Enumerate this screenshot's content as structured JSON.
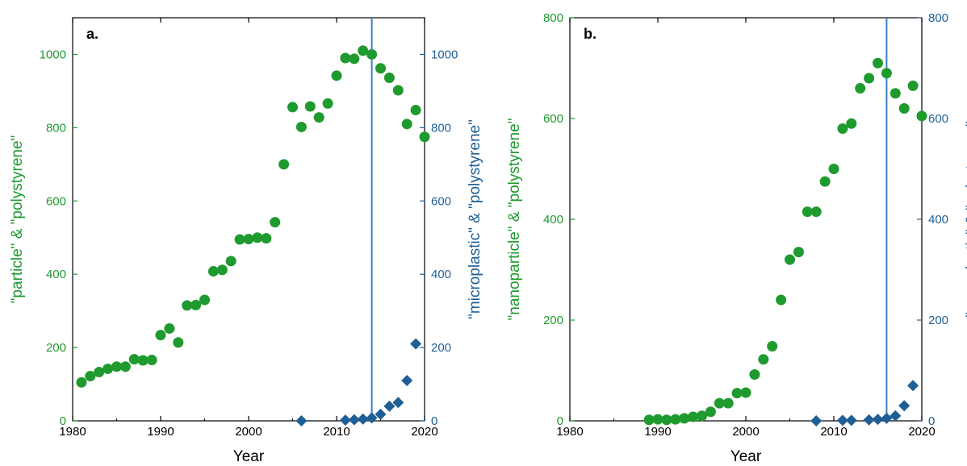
{
  "colors": {
    "green": "#1e9a2e",
    "blue": "#1f5f96",
    "vline": "#3a7fc1",
    "axis": "#000000"
  },
  "chart_data": [
    {
      "type": "scatter",
      "panel_label": "a.",
      "xlabel": "Year",
      "ylabel_left": "\"particle\" & \"polystyrene\"",
      "ylabel_right": "\"microplastic\" & \"polystyrene\"",
      "xlim": [
        1980,
        2020
      ],
      "ylim": [
        0,
        1100
      ],
      "y2lim": [
        0,
        1100
      ],
      "xticks": [
        1980,
        1990,
        2000,
        2010,
        2020
      ],
      "yticks": [
        0,
        200,
        400,
        600,
        800,
        1000
      ],
      "y2ticks": [
        0,
        200,
        400,
        600,
        800,
        1000
      ],
      "vline_x": 2014,
      "series": [
        {
          "axis": "left",
          "marker": "circle",
          "color": "#1e9a2e",
          "x": [
            1981,
            1982,
            1983,
            1984,
            1985,
            1986,
            1987,
            1988,
            1989,
            1990,
            1991,
            1992,
            1993,
            1994,
            1995,
            1996,
            1997,
            1998,
            1999,
            2000,
            2001,
            2002,
            2003,
            2004,
            2005,
            2006,
            2007,
            2008,
            2009,
            2010,
            2011,
            2012,
            2013,
            2014,
            2015,
            2016,
            2017,
            2018,
            2019,
            2020
          ],
          "y": [
            105,
            122,
            133,
            142,
            148,
            148,
            168,
            165,
            166,
            234,
            252,
            214,
            315,
            316,
            330,
            408,
            412,
            436,
            495,
            496,
            500,
            498,
            542,
            700,
            856,
            802,
            858,
            828,
            866,
            942,
            990,
            988,
            1010,
            1000,
            962,
            936,
            902,
            810,
            848,
            775
          ]
        },
        {
          "axis": "right",
          "marker": "diamond",
          "color": "#1f5f96",
          "x": [
            2006,
            2011,
            2012,
            2013,
            2014,
            2015,
            2016,
            2017,
            2018,
            2019
          ],
          "y": [
            0,
            2,
            3,
            5,
            8,
            18,
            40,
            50,
            110,
            210
          ]
        }
      ]
    },
    {
      "type": "scatter",
      "panel_label": "b.",
      "xlabel": "Year",
      "ylabel_left": "\"nanoparticle\" & \"polystyrene\"",
      "ylabel_right": "\"nanoplastic\" & \"polystyrene\"",
      "xlim": [
        1980,
        2020
      ],
      "ylim": [
        0,
        800
      ],
      "y2lim": [
        0,
        800
      ],
      "xticks": [
        1980,
        1990,
        2000,
        2010,
        2020
      ],
      "yticks": [
        0,
        200,
        400,
        600,
        800
      ],
      "y2ticks": [
        0,
        200,
        400,
        600,
        800
      ],
      "vline_x": 2016,
      "series": [
        {
          "axis": "left",
          "marker": "circle",
          "color": "#1e9a2e",
          "x": [
            1989,
            1990,
            1991,
            1992,
            1993,
            1994,
            1995,
            1996,
            1997,
            1998,
            1999,
            2000,
            2001,
            2002,
            2003,
            2004,
            2005,
            2006,
            2007,
            2008,
            2009,
            2010,
            2011,
            2012,
            2013,
            2014,
            2015,
            2016,
            2017,
            2018,
            2019,
            2020
          ],
          "y": [
            2,
            3,
            2,
            3,
            5,
            8,
            10,
            18,
            35,
            35,
            55,
            56,
            92,
            122,
            148,
            240,
            320,
            335,
            415,
            415,
            475,
            500,
            580,
            590,
            660,
            680,
            710,
            690,
            650,
            620,
            665,
            605
          ]
        },
        {
          "axis": "right",
          "marker": "diamond",
          "color": "#1f5f96",
          "x": [
            2008,
            2011,
            2012,
            2014,
            2015,
            2016,
            2017,
            2018,
            2019
          ],
          "y": [
            0,
            1,
            1,
            2,
            3,
            5,
            10,
            30,
            70
          ]
        }
      ]
    }
  ]
}
